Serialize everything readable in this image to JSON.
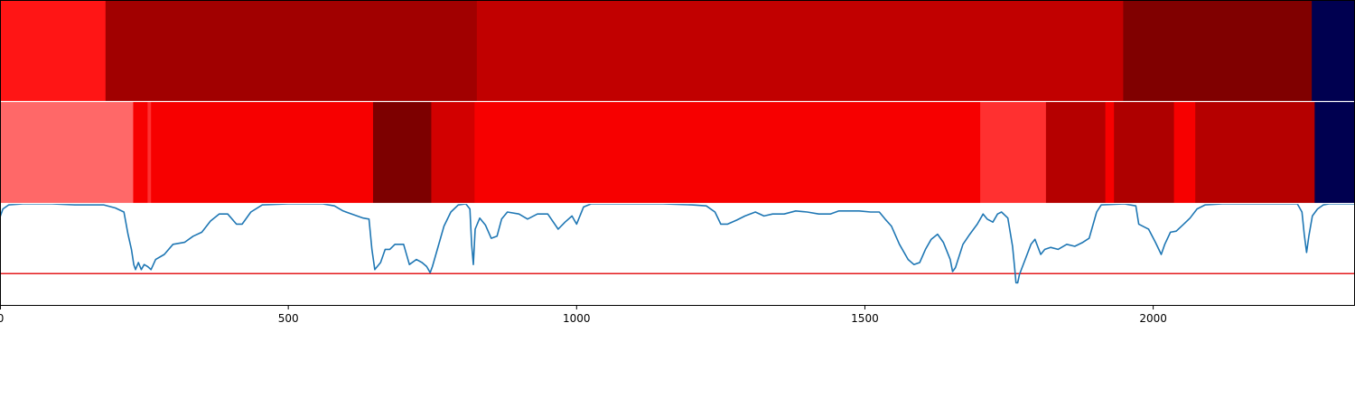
{
  "chart_data": {
    "type": "heatmap",
    "xlim": [
      0,
      2350
    ],
    "x_ticks": [
      0,
      500,
      1000,
      1500,
      2000
    ],
    "tick_labels": [
      "0",
      "500",
      "1000",
      "1500",
      "2000"
    ],
    "grid": false,
    "legend": "none",
    "segment_rows": [
      {
        "segments": [
          {
            "start": 0,
            "end": 183,
            "color": "#ff1515"
          },
          {
            "start": 183,
            "end": 827,
            "color": "#a10000"
          },
          {
            "start": 827,
            "end": 1948,
            "color": "#c10000"
          },
          {
            "start": 1948,
            "end": 2275,
            "color": "#800000"
          },
          {
            "start": 2275,
            "end": 2350,
            "color": "#000050"
          }
        ]
      },
      {
        "segments": [
          {
            "start": 0,
            "end": 231,
            "color": "#ff6868"
          },
          {
            "start": 231,
            "end": 256,
            "color": "#f70000"
          },
          {
            "start": 256,
            "end": 262,
            "color": "#ff3030"
          },
          {
            "start": 262,
            "end": 647,
            "color": "#f70000"
          },
          {
            "start": 647,
            "end": 748,
            "color": "#7d0000"
          },
          {
            "start": 748,
            "end": 823,
            "color": "#d20000"
          },
          {
            "start": 823,
            "end": 1700,
            "color": "#f70000"
          },
          {
            "start": 1700,
            "end": 1814,
            "color": "#ff3030"
          },
          {
            "start": 1814,
            "end": 1917,
            "color": "#b50000"
          },
          {
            "start": 1917,
            "end": 1932,
            "color": "#f70000"
          },
          {
            "start": 1932,
            "end": 2036,
            "color": "#ae0000"
          },
          {
            "start": 2036,
            "end": 2073,
            "color": "#f70000"
          },
          {
            "start": 2073,
            "end": 2280,
            "color": "#b50000"
          },
          {
            "start": 2280,
            "end": 2350,
            "color": "#000050"
          }
        ]
      }
    ],
    "line_panel": {
      "ylim": [
        0,
        1
      ],
      "threshold": 0.31,
      "threshold_color": "#e41a1c",
      "line_color": "#1f77b4",
      "points": [
        [
          0,
          0.87
        ],
        [
          5,
          0.95
        ],
        [
          15,
          0.99
        ],
        [
          40,
          1.0
        ],
        [
          90,
          1.0
        ],
        [
          130,
          0.99
        ],
        [
          180,
          0.99
        ],
        [
          200,
          0.96
        ],
        [
          215,
          0.92
        ],
        [
          222,
          0.7
        ],
        [
          228,
          0.55
        ],
        [
          232,
          0.4
        ],
        [
          235,
          0.35
        ],
        [
          240,
          0.42
        ],
        [
          245,
          0.35
        ],
        [
          250,
          0.4
        ],
        [
          256,
          0.38
        ],
        [
          262,
          0.35
        ],
        [
          270,
          0.45
        ],
        [
          285,
          0.5
        ],
        [
          300,
          0.6
        ],
        [
          320,
          0.62
        ],
        [
          335,
          0.68
        ],
        [
          350,
          0.72
        ],
        [
          365,
          0.83
        ],
        [
          380,
          0.9
        ],
        [
          395,
          0.9
        ],
        [
          410,
          0.8
        ],
        [
          420,
          0.8
        ],
        [
          435,
          0.92
        ],
        [
          455,
          0.99
        ],
        [
          500,
          1.0
        ],
        [
          560,
          1.0
        ],
        [
          580,
          0.98
        ],
        [
          595,
          0.93
        ],
        [
          610,
          0.9
        ],
        [
          630,
          0.86
        ],
        [
          640,
          0.85
        ],
        [
          645,
          0.55
        ],
        [
          650,
          0.35
        ],
        [
          660,
          0.42
        ],
        [
          668,
          0.55
        ],
        [
          676,
          0.55
        ],
        [
          685,
          0.6
        ],
        [
          700,
          0.6
        ],
        [
          710,
          0.4
        ],
        [
          722,
          0.45
        ],
        [
          732,
          0.42
        ],
        [
          740,
          0.38
        ],
        [
          746,
          0.32
        ],
        [
          750,
          0.38
        ],
        [
          760,
          0.58
        ],
        [
          770,
          0.78
        ],
        [
          782,
          0.92
        ],
        [
          795,
          0.99
        ],
        [
          808,
          1.0
        ],
        [
          815,
          0.95
        ],
        [
          818,
          0.6
        ],
        [
          821,
          0.4
        ],
        [
          824,
          0.75
        ],
        [
          832,
          0.86
        ],
        [
          842,
          0.79
        ],
        [
          852,
          0.66
        ],
        [
          862,
          0.68
        ],
        [
          870,
          0.85
        ],
        [
          880,
          0.92
        ],
        [
          900,
          0.9
        ],
        [
          915,
          0.85
        ],
        [
          932,
          0.9
        ],
        [
          950,
          0.9
        ],
        [
          968,
          0.75
        ],
        [
          980,
          0.82
        ],
        [
          992,
          0.88
        ],
        [
          1000,
          0.8
        ],
        [
          1012,
          0.97
        ],
        [
          1025,
          1.0
        ],
        [
          1100,
          1.0
        ],
        [
          1150,
          1.0
        ],
        [
          1200,
          0.99
        ],
        [
          1225,
          0.98
        ],
        [
          1240,
          0.92
        ],
        [
          1250,
          0.8
        ],
        [
          1262,
          0.8
        ],
        [
          1278,
          0.84
        ],
        [
          1292,
          0.88
        ],
        [
          1310,
          0.92
        ],
        [
          1325,
          0.88
        ],
        [
          1340,
          0.9
        ],
        [
          1360,
          0.9
        ],
        [
          1380,
          0.93
        ],
        [
          1400,
          0.92
        ],
        [
          1420,
          0.9
        ],
        [
          1440,
          0.9
        ],
        [
          1455,
          0.93
        ],
        [
          1470,
          0.93
        ],
        [
          1490,
          0.93
        ],
        [
          1510,
          0.92
        ],
        [
          1525,
          0.92
        ],
        [
          1535,
          0.85
        ],
        [
          1546,
          0.78
        ],
        [
          1560,
          0.6
        ],
        [
          1575,
          0.45
        ],
        [
          1585,
          0.4
        ],
        [
          1595,
          0.42
        ],
        [
          1605,
          0.55
        ],
        [
          1615,
          0.65
        ],
        [
          1626,
          0.7
        ],
        [
          1636,
          0.62
        ],
        [
          1648,
          0.45
        ],
        [
          1652,
          0.33
        ],
        [
          1657,
          0.37
        ],
        [
          1670,
          0.6
        ],
        [
          1682,
          0.7
        ],
        [
          1695,
          0.8
        ],
        [
          1705,
          0.9
        ],
        [
          1712,
          0.85
        ],
        [
          1722,
          0.82
        ],
        [
          1730,
          0.9
        ],
        [
          1737,
          0.92
        ],
        [
          1748,
          0.86
        ],
        [
          1756,
          0.58
        ],
        [
          1760,
          0.35
        ],
        [
          1762,
          0.22
        ],
        [
          1765,
          0.22
        ],
        [
          1768,
          0.3
        ],
        [
          1778,
          0.45
        ],
        [
          1788,
          0.6
        ],
        [
          1795,
          0.65
        ],
        [
          1805,
          0.5
        ],
        [
          1812,
          0.55
        ],
        [
          1822,
          0.57
        ],
        [
          1835,
          0.55
        ],
        [
          1850,
          0.6
        ],
        [
          1864,
          0.58
        ],
        [
          1878,
          0.62
        ],
        [
          1889,
          0.66
        ],
        [
          1896,
          0.8
        ],
        [
          1902,
          0.92
        ],
        [
          1910,
          0.99
        ],
        [
          1950,
          1.0
        ],
        [
          1970,
          0.98
        ],
        [
          1975,
          0.8
        ],
        [
          1992,
          0.75
        ],
        [
          2004,
          0.62
        ],
        [
          2014,
          0.5
        ],
        [
          2020,
          0.6
        ],
        [
          2030,
          0.72
        ],
        [
          2040,
          0.73
        ],
        [
          2053,
          0.8
        ],
        [
          2064,
          0.86
        ],
        [
          2076,
          0.95
        ],
        [
          2090,
          0.99
        ],
        [
          2120,
          1.0
        ],
        [
          2250,
          1.0
        ],
        [
          2258,
          0.92
        ],
        [
          2262,
          0.7
        ],
        [
          2266,
          0.52
        ],
        [
          2270,
          0.68
        ],
        [
          2276,
          0.88
        ],
        [
          2285,
          0.95
        ],
        [
          2295,
          0.99
        ],
        [
          2305,
          1.0
        ],
        [
          2350,
          1.0
        ]
      ]
    }
  }
}
